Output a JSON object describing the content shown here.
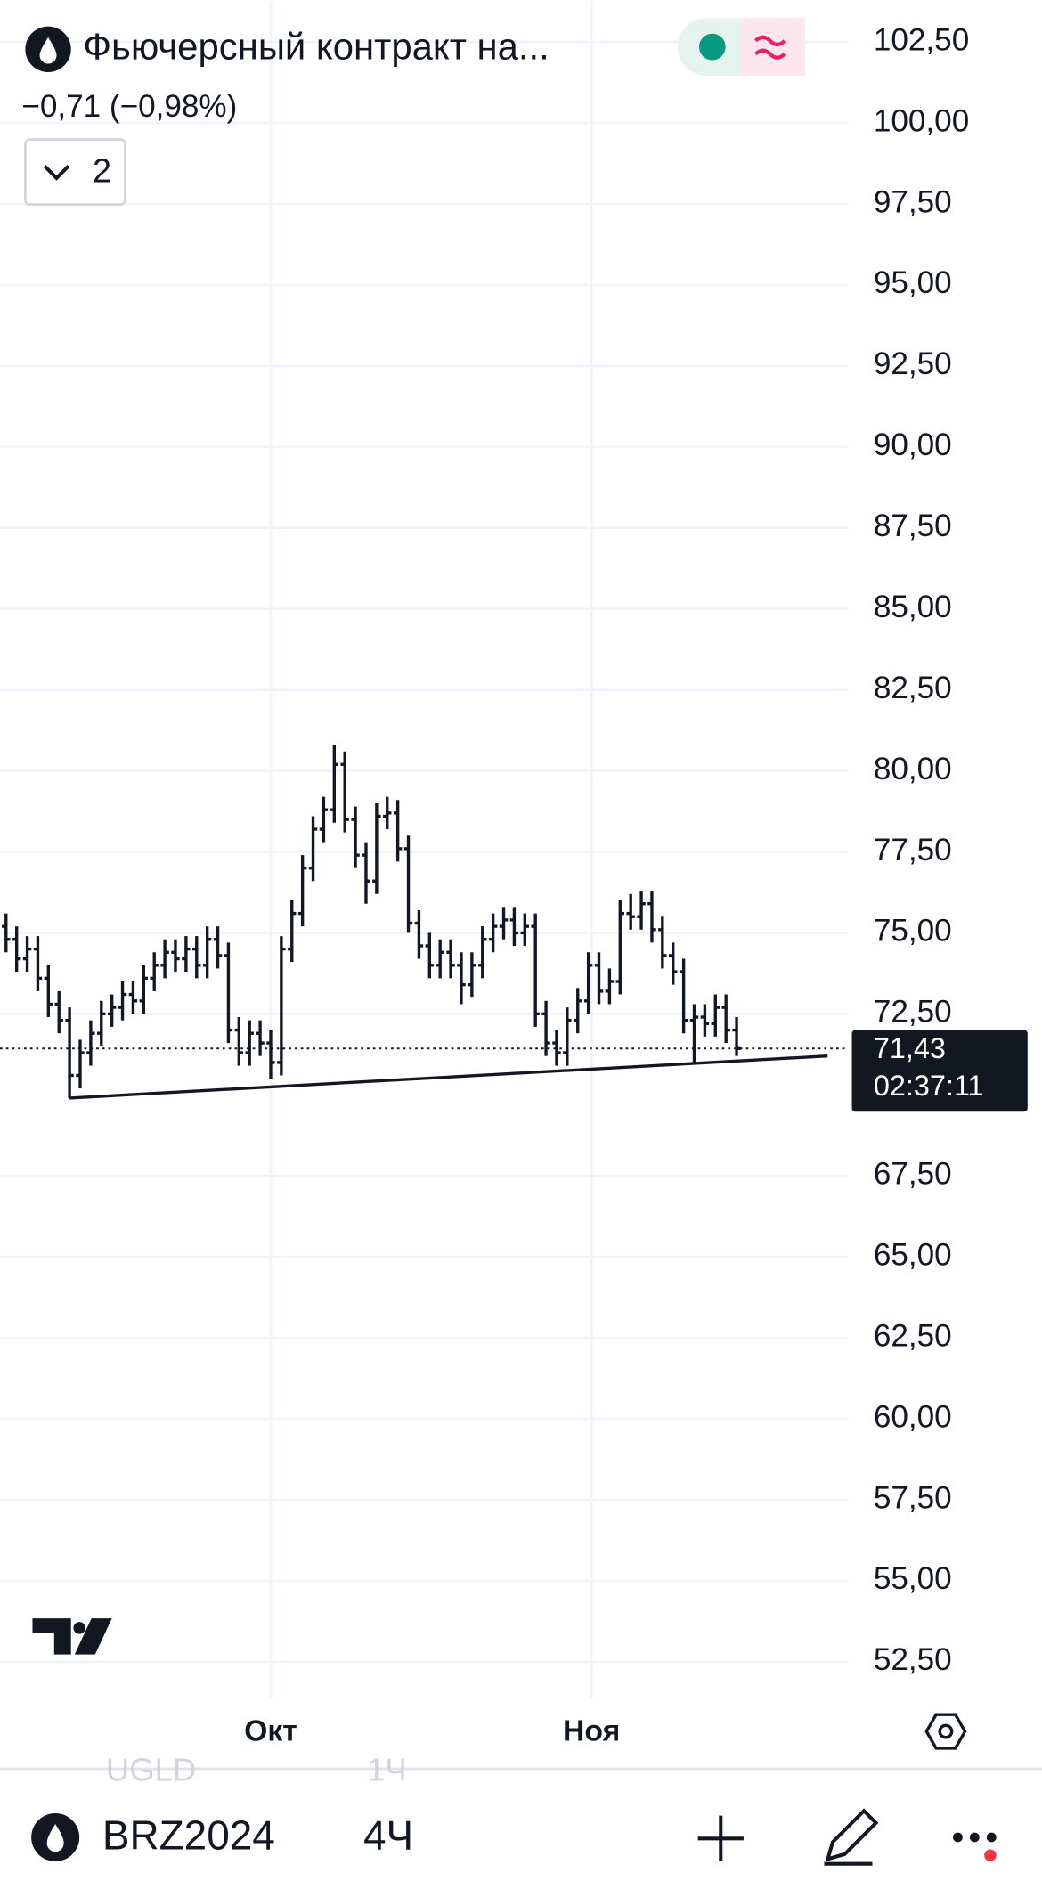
{
  "header": {
    "title": "Фьючерсный контракт на...",
    "change": "−0,71 (−0,98%)",
    "indicators": "2"
  },
  "chart_data": {
    "type": "ohlc",
    "color": "#131722",
    "x": [
      0,
      1,
      2,
      3,
      4,
      5,
      6,
      7,
      8,
      9,
      10,
      11,
      12,
      13,
      14,
      15,
      16,
      17,
      18,
      19,
      20,
      21,
      22,
      23,
      24,
      25,
      26,
      27,
      28,
      29,
      30,
      31,
      32,
      33,
      34,
      35,
      36,
      37,
      38,
      39,
      40,
      41,
      42,
      43,
      44,
      45,
      46,
      47,
      48,
      49,
      50,
      51,
      52,
      53,
      54,
      55,
      56,
      57,
      58,
      59,
      60,
      61,
      62,
      63,
      64,
      65,
      66,
      67,
      68,
      69
    ],
    "open": [
      75.2,
      74.8,
      74.2,
      74.5,
      73.6,
      72.8,
      72.3,
      70.6,
      71.3,
      71.9,
      72.5,
      72.7,
      73.1,
      72.9,
      73.6,
      74.0,
      74.4,
      74.2,
      74.5,
      74.0,
      74.8,
      74.3,
      72.0,
      71.3,
      71.9,
      71.6,
      71.0,
      74.5,
      75.6,
      77.0,
      78.2,
      78.8,
      80.2,
      78.5,
      77.4,
      76.6,
      78.6,
      78.7,
      77.6,
      75.3,
      74.6,
      74.0,
      74.4,
      74.0,
      73.4,
      74.0,
      74.8,
      75.2,
      75.4,
      75.0,
      75.2,
      72.5,
      71.6,
      71.3,
      72.3,
      72.9,
      74.0,
      73.2,
      73.5,
      75.6,
      75.5,
      75.9,
      75.1,
      74.3,
      73.8,
      72.3,
      72.4,
      72.2,
      72.7,
      72.0
    ],
    "high": [
      75.6,
      75.2,
      74.9,
      74.9,
      74.0,
      73.2,
      72.7,
      71.7,
      72.3,
      72.9,
      73.1,
      73.5,
      73.5,
      74.0,
      74.4,
      74.8,
      74.8,
      74.9,
      74.9,
      75.2,
      75.2,
      74.7,
      72.4,
      72.3,
      72.3,
      72.0,
      74.9,
      76.0,
      77.4,
      78.6,
      79.2,
      80.8,
      80.6,
      78.9,
      77.8,
      79.0,
      79.2,
      79.1,
      78.0,
      75.7,
      75.0,
      74.8,
      74.8,
      74.4,
      74.4,
      75.2,
      75.6,
      75.8,
      75.8,
      75.6,
      75.6,
      72.9,
      72.0,
      72.7,
      73.3,
      74.4,
      74.4,
      73.9,
      76.0,
      76.2,
      76.3,
      76.3,
      75.5,
      74.7,
      74.2,
      72.8,
      72.8,
      73.1,
      73.1,
      72.4
    ],
    "low": [
      74.4,
      73.8,
      73.8,
      73.2,
      72.4,
      71.9,
      69.9,
      70.2,
      70.9,
      71.5,
      72.1,
      72.3,
      72.5,
      72.5,
      73.2,
      73.6,
      73.8,
      73.8,
      73.6,
      73.6,
      73.9,
      71.6,
      70.9,
      70.9,
      71.2,
      70.5,
      70.6,
      74.1,
      75.2,
      76.6,
      77.8,
      78.4,
      78.1,
      77.0,
      75.9,
      76.2,
      78.2,
      77.2,
      75.0,
      74.2,
      73.6,
      73.6,
      73.6,
      72.8,
      73.0,
      73.6,
      74.4,
      74.8,
      74.6,
      74.6,
      72.1,
      71.2,
      70.9,
      70.9,
      71.9,
      72.5,
      72.8,
      72.8,
      73.1,
      75.1,
      75.1,
      74.7,
      73.9,
      73.4,
      71.9,
      71.0,
      71.8,
      71.8,
      71.6,
      71.2
    ],
    "close": [
      74.8,
      74.2,
      74.5,
      73.6,
      72.8,
      72.3,
      70.6,
      71.3,
      71.9,
      72.5,
      72.7,
      73.1,
      72.9,
      73.6,
      74.0,
      74.4,
      74.2,
      74.5,
      74.0,
      74.8,
      74.3,
      72.0,
      71.3,
      71.9,
      71.6,
      71.0,
      74.5,
      75.6,
      77.0,
      78.2,
      78.8,
      80.2,
      78.5,
      77.4,
      76.6,
      78.6,
      78.7,
      77.6,
      75.3,
      74.6,
      74.0,
      74.4,
      74.0,
      73.4,
      74.0,
      74.8,
      75.2,
      75.4,
      75.0,
      75.2,
      72.5,
      71.6,
      71.3,
      72.3,
      72.9,
      74.0,
      73.2,
      73.5,
      75.6,
      75.5,
      75.9,
      75.1,
      74.3,
      73.8,
      72.3,
      72.4,
      72.2,
      72.7,
      72.0,
      71.43
    ],
    "xlim": [
      -0.57,
      79.55
    ],
    "ylim": [
      51.39,
      103.76
    ],
    "xticks": [
      {
        "value": 25,
        "label": "Окт"
      },
      {
        "value": 55.3,
        "label": "Ноя"
      }
    ],
    "yticks": [
      {
        "value": 102.5,
        "label": "102,50"
      },
      {
        "value": 100,
        "label": "100,00"
      },
      {
        "value": 97.5,
        "label": "97,50"
      },
      {
        "value": 95,
        "label": "95,00"
      },
      {
        "value": 92.5,
        "label": "92,50"
      },
      {
        "value": 90,
        "label": "90,00"
      },
      {
        "value": 87.5,
        "label": "87,50"
      },
      {
        "value": 85,
        "label": "85,00"
      },
      {
        "value": 82.5,
        "label": "82,50"
      },
      {
        "value": 80,
        "label": "80,00"
      },
      {
        "value": 77.5,
        "label": "77,50"
      },
      {
        "value": 75,
        "label": "75,00"
      },
      {
        "value": 72.5,
        "label": "72,50"
      },
      {
        "value": 67.5,
        "label": "67,50"
      },
      {
        "value": 65,
        "label": "65,00"
      },
      {
        "value": 62.5,
        "label": "62,50"
      },
      {
        "value": 60,
        "label": "60,00"
      },
      {
        "value": 57.5,
        "label": "57,50"
      },
      {
        "value": 55,
        "label": "55,00"
      },
      {
        "value": 52.5,
        "label": "52,50"
      }
    ],
    "grid": true,
    "last_price": {
      "value": 71.43,
      "label": "71,43"
    },
    "countdown": "02:37:11",
    "trendline": {
      "x": [
        6,
        77.6
      ],
      "y": [
        69.9,
        71.2
      ]
    }
  },
  "faded": {
    "symbol": "UGLD",
    "interval": "1Ч"
  },
  "toolbar": {
    "symbol": "BRZ2024",
    "interval": "4Ч"
  }
}
